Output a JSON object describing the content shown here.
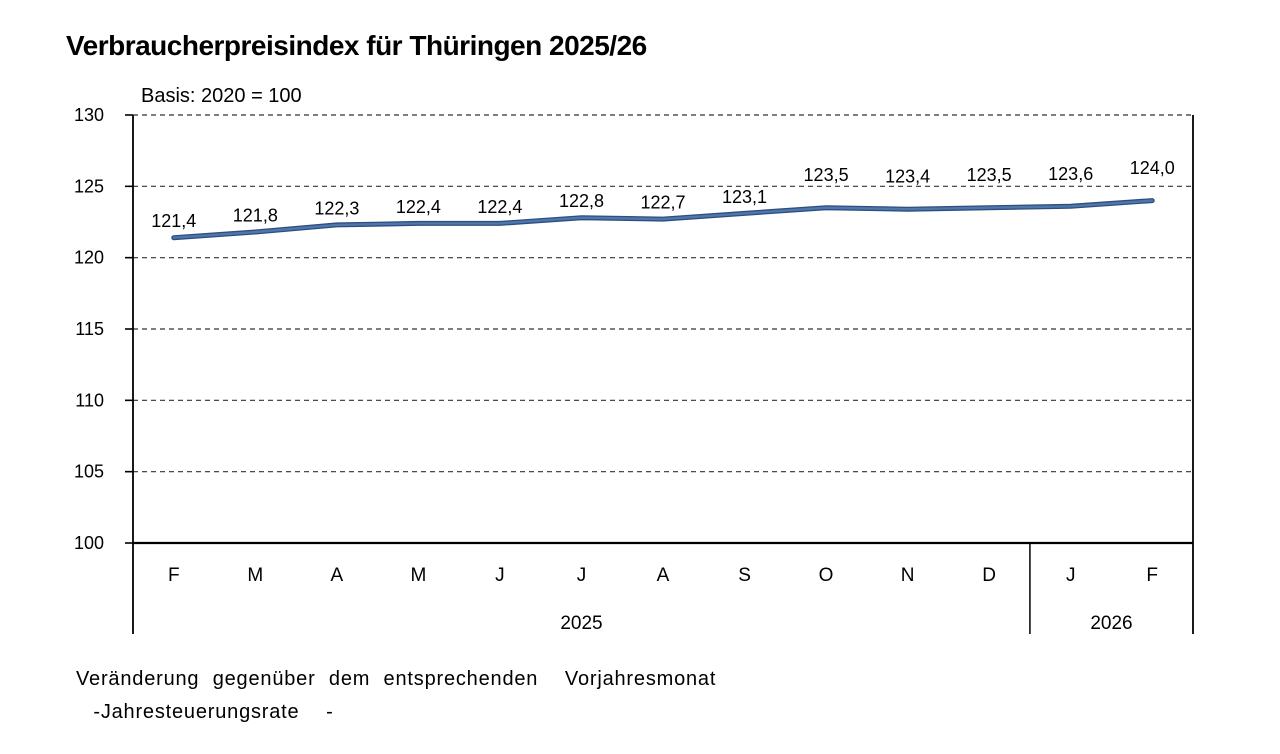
{
  "title": "Verbraucherpreisindex für Thüringen 2025/26",
  "subtitle": "Basis: 2020 = 100",
  "footnote": {
    "line1": "Veränderung gegenüber dem entsprechenden  Vorjahresmonat",
    "line2": " -Jahresteuerungsrate  -"
  },
  "chart_data": {
    "type": "line",
    "title": "Verbraucherpreisindex für Thüringen 2025/26",
    "subtitle": "Basis: 2020 = 100",
    "categories": [
      "F",
      "M",
      "A",
      "M",
      "J",
      "J",
      "A",
      "S",
      "O",
      "N",
      "D",
      "J",
      "F"
    ],
    "values": [
      121.4,
      121.8,
      122.3,
      122.4,
      122.4,
      122.8,
      122.7,
      123.1,
      123.5,
      123.4,
      123.5,
      123.6,
      124.0
    ],
    "data_labels": [
      "121,4",
      "121,8",
      "122,3",
      "122,4",
      "122,4",
      "122,8",
      "122,7",
      "123,1",
      "123,5",
      "123,4",
      "123,5",
      "123,6",
      "124,0"
    ],
    "year_groups": [
      {
        "label": "2025",
        "span": 11
      },
      {
        "label": "2026",
        "span": 2
      }
    ],
    "ylim": [
      100,
      130
    ],
    "yticks": [
      100,
      105,
      110,
      115,
      120,
      125,
      130
    ],
    "grid": "horizontal-dashed",
    "legend": "none",
    "line_color_dark": "#2f4e7d",
    "line_color_light": "#4e77ac",
    "grid_color": "#333333",
    "axis_color": "#000000"
  }
}
